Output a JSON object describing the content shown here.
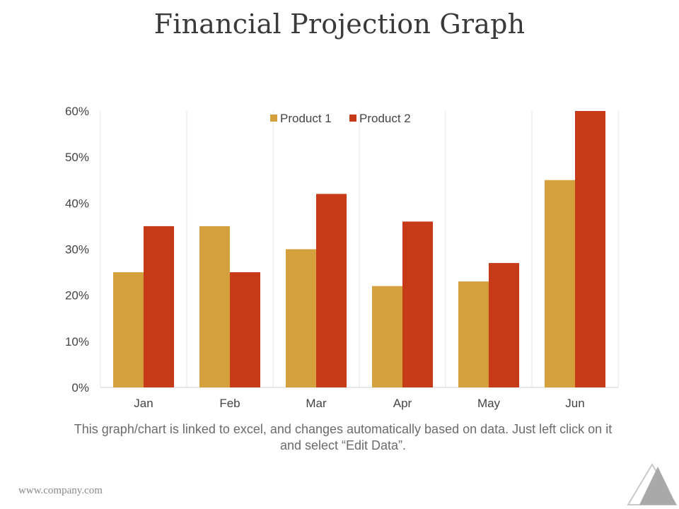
{
  "page": {
    "title": "Financial Projection Graph",
    "caption": "This graph/chart is linked to excel, and changes automatically based on data. Just left click on it and select “Edit Data”.",
    "footer_url": "www.company.com",
    "logo_icon": "triangle-logo-icon"
  },
  "colors": {
    "product1": "#D4A03E",
    "product2": "#C63A17",
    "grid": "#e6e6e6",
    "axis_text": "#444444"
  },
  "chart_data": {
    "type": "bar",
    "title": "",
    "xlabel": "",
    "ylabel": "",
    "categories": [
      "Jan",
      "Feb",
      "Mar",
      "Apr",
      "May",
      "Jun"
    ],
    "series": [
      {
        "name": "Product 1",
        "values": [
          0.25,
          0.35,
          0.3,
          0.22,
          0.23,
          0.45
        ]
      },
      {
        "name": "Product 2",
        "values": [
          0.35,
          0.25,
          0.42,
          0.36,
          0.27,
          0.6
        ]
      }
    ],
    "ylim": [
      0,
      0.6
    ],
    "yticks": [
      "0%",
      "10%",
      "20%",
      "30%",
      "40%",
      "50%",
      "60%"
    ],
    "grid": "vertical category separators",
    "legend": "top-center"
  }
}
